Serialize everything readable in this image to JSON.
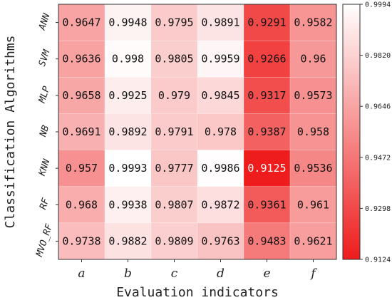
{
  "chart_data": {
    "type": "heatmap",
    "xlabel": "Evaluation indicators",
    "ylabel": "Classification Algorithms",
    "columns": [
      "a",
      "b",
      "c",
      "d",
      "e",
      "f"
    ],
    "rows": [
      "ANN",
      "SVM",
      "MLP",
      "NB",
      "KNN",
      "RF",
      "MVO_RF"
    ],
    "values": [
      [
        0.9647,
        0.9948,
        0.9795,
        0.9891,
        0.9291,
        0.9582
      ],
      [
        0.9636,
        0.998,
        0.9805,
        0.9959,
        0.9266,
        0.96
      ],
      [
        0.9658,
        0.9925,
        0.979,
        0.9845,
        0.9317,
        0.9573
      ],
      [
        0.9691,
        0.9892,
        0.9791,
        0.978,
        0.9387,
        0.958
      ],
      [
        0.957,
        0.9993,
        0.9777,
        0.9986,
        0.9125,
        0.9536
      ],
      [
        0.968,
        0.9938,
        0.9807,
        0.9872,
        0.9361,
        0.961
      ],
      [
        0.9738,
        0.9882,
        0.9809,
        0.9763,
        0.9483,
        0.9621
      ]
    ],
    "colorbar": {
      "min": 0.9124,
      "max": 0.9994,
      "ticks": [
        "0.9994",
        "0.9820",
        "0.9646",
        "0.9472",
        "0.9298",
        "0.9124"
      ],
      "low_color": "#ee1c1c",
      "high_color": "#ffffff"
    }
  }
}
